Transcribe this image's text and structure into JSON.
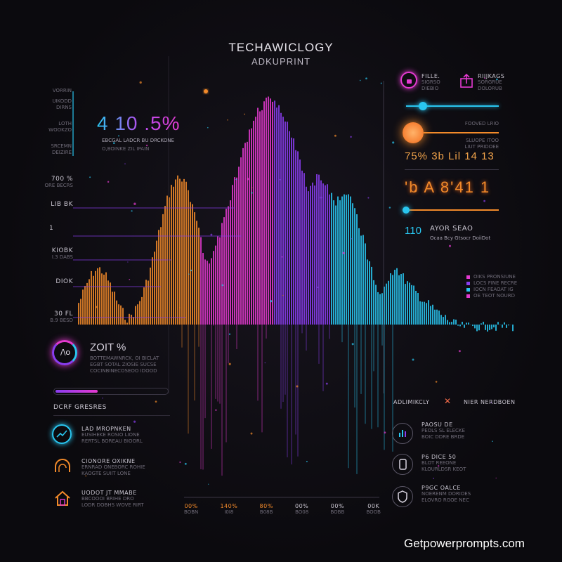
{
  "header": {
    "title": "TECHAWICLOGY",
    "subtitle": "ADKUPRINT"
  },
  "left_panel": {
    "top_labels": [
      "VORRIN",
      "UIKODD DIRNS",
      "LOTH WOOKZO",
      "SRCEMN DEIZIRE"
    ],
    "metric": {
      "value": "4 10 .5%",
      "caption": "EBCGAL LADCR BU DRCKONE",
      "sub": "O,BOINKE ZIL IPAIN"
    },
    "axis_labels": [
      {
        "value": "700 %",
        "caption": "ORE BECRS"
      },
      {
        "value": "LIB BK",
        "caption": ""
      },
      {
        "value": "1",
        "caption": ""
      },
      {
        "value": "KIOBK",
        "caption": "I.3 DABS"
      },
      {
        "value": "DIOK",
        "caption": ""
      },
      {
        "value": "30 FL",
        "caption": "B.9 BESD"
      }
    ],
    "gauge": {
      "value": "ZOIT %",
      "lines": [
        "BOTTEMAWNRCK, OI BICLAT",
        "EGBT SOTAL ZIOSIE SUCSE",
        "COCINBINECOSEOO IDOOD"
      ]
    },
    "section_title": "DCRF GRESRES",
    "items": [
      {
        "icon": "trend-icon",
        "title": "LAD MROPNKEN",
        "desc": [
          "EUSIHEKE ROSIO LIONE",
          "RERTSL BOREAU BIOORL"
        ]
      },
      {
        "icon": "dome-icon",
        "title": "CIONORE OXIKNE",
        "desc": [
          "ERNRAD ONEBORC ROHIE",
          "KAOGTE SUIIT LONE"
        ]
      },
      {
        "icon": "house-icon",
        "title": "UODOT JT MMABE",
        "desc": [
          "BBCOOOI BRIHE DRO",
          "LODR DOBHS WOVE RIRT"
        ]
      }
    ]
  },
  "right_panel": {
    "badges": [
      {
        "icon": "lock-icon",
        "title": "FILLE.",
        "sub": [
          "SIGRSO",
          "DIEBIO"
        ]
      },
      {
        "icon": "upload-icon",
        "title": "RIIJKAGS",
        "sub": [
          "SORGRUE",
          "DOLORUB"
        ]
      }
    ],
    "slider_caption": [
      "FOOVED LRIO",
      "SLUOPE ITOO",
      "LIUT PRIDOEE"
    ],
    "readout_a": "75% 3b Lil 14 13",
    "readout_b": "'b A 8'41 1",
    "row_value": "110",
    "row_title": "AYOR SEAO",
    "row_sub": "Ocaa Bcy Gtsocr DoiiDot",
    "legend": [
      "OIKS PRONSIUNE",
      "LOCS FINE RECRE",
      "IOCN FEAOAT IG",
      "OE TEOT NOURD"
    ],
    "adv": {
      "left": "ADLIMIKCLY",
      "right": "NIER NERDBOEN"
    },
    "items": [
      {
        "icon": "bars-icon",
        "title": "PAOSU DE",
        "desc": [
          "PEOLS SL ELECKE",
          "BOIC DDRE BRDE"
        ]
      },
      {
        "icon": "phone-icon",
        "title": "P6 DICE 50",
        "desc": [
          "BLOT REEONE",
          "KLOURLDSR KEOT"
        ]
      },
      {
        "icon": "shield-icon",
        "title": "P9GC OALCE",
        "desc": [
          "NOERENM DORIOES",
          "ELOVRO RGOE NEC"
        ]
      }
    ]
  },
  "x_axis_labels": [
    {
      "value": "00%",
      "caption": "BOBN"
    },
    {
      "value": "140%",
      "caption": "I0I8"
    },
    {
      "value": "80%",
      "caption": "B08B"
    },
    {
      "value": "00%",
      "caption": "BO08"
    },
    {
      "value": "00%",
      "caption": "BOBB"
    },
    {
      "value": "00K",
      "caption": "BOOB"
    }
  ],
  "watermark": "Getpowerprompts.com",
  "colors": {
    "cyan": "#29c6f0",
    "magenta": "#e43ad0",
    "purple": "#8a3df0",
    "orange": "#f28a2a"
  }
}
